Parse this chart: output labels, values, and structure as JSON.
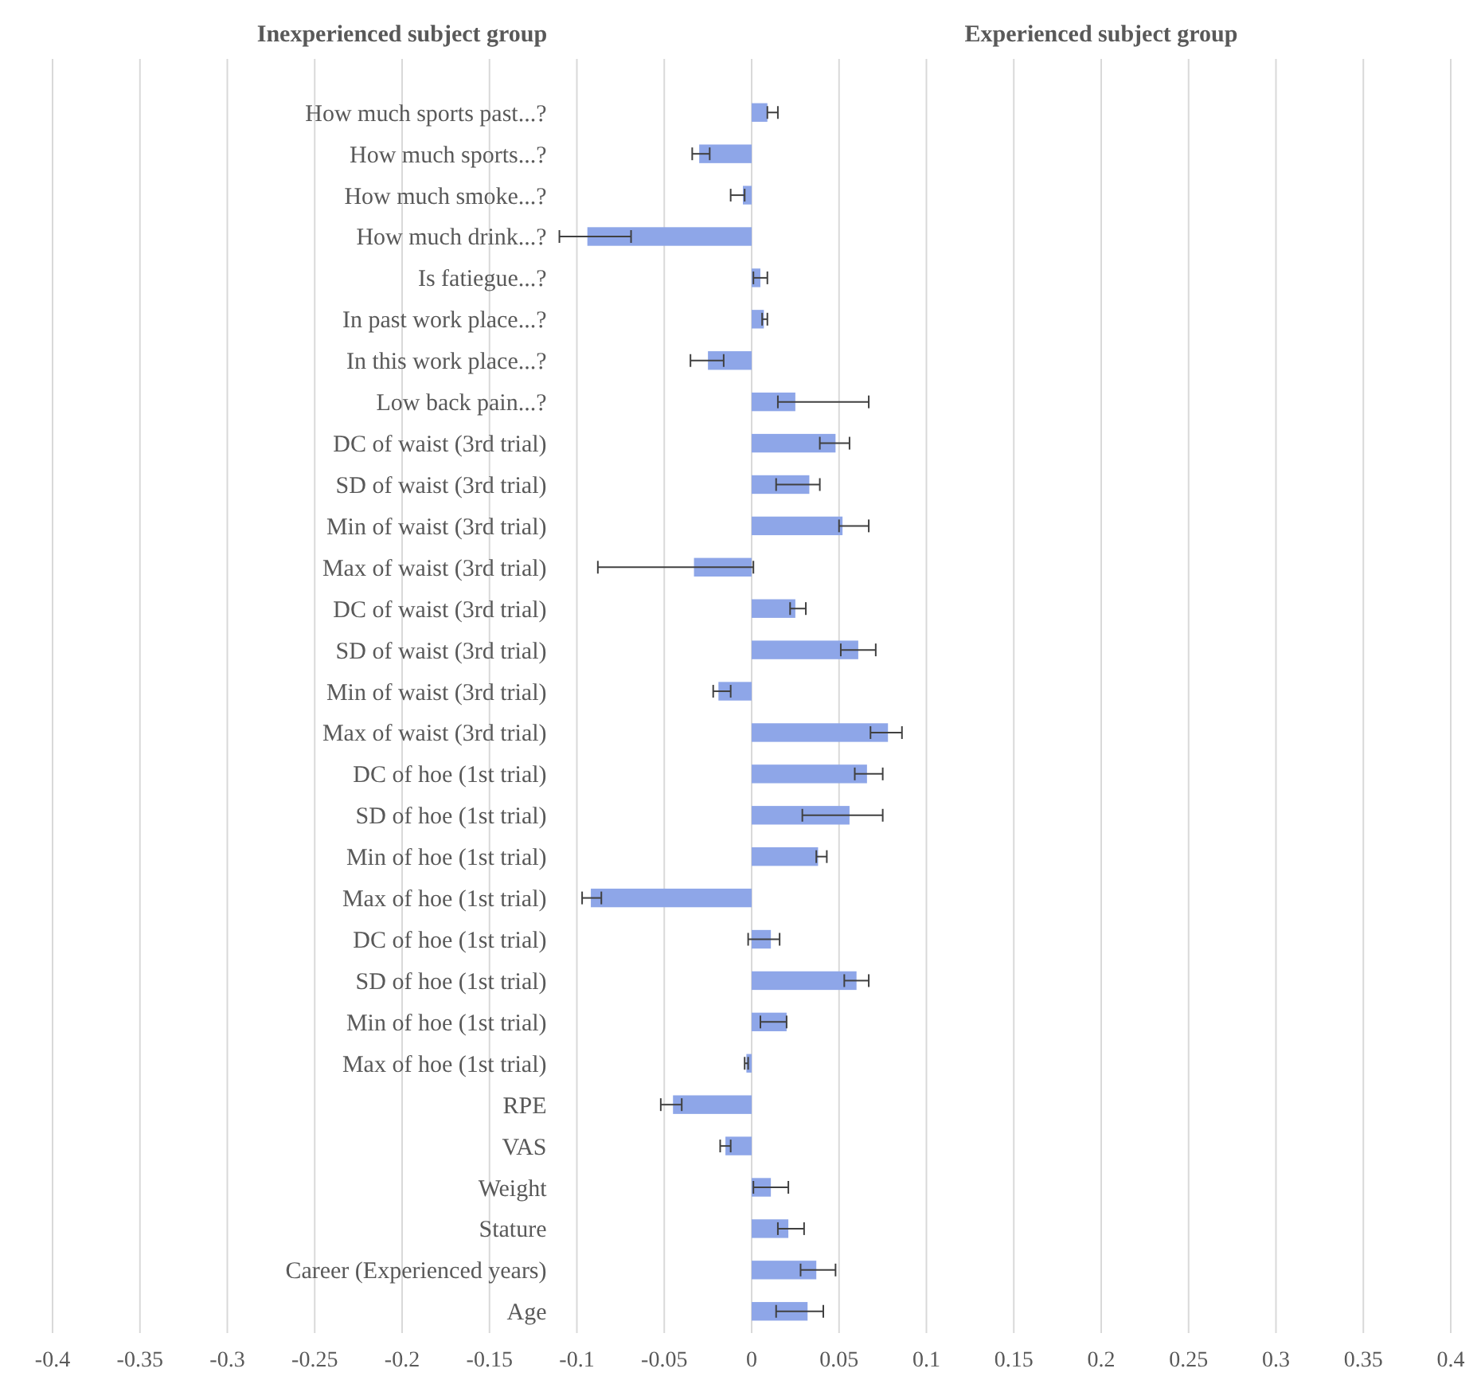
{
  "chart_data": {
    "type": "bar",
    "orientation": "horizontal",
    "annotations": [
      "Inexperienced subject group",
      "Experienced subject group"
    ],
    "categories": [
      "How much sports past...?",
      "How much sports...?",
      "How much smoke...?",
      "How much drink...?",
      "Is fatiegue...?",
      "In past work place...?",
      "In this work place...?",
      "Low back pain...?",
      "DC of waist (3rd trial)",
      "SD of waist (3rd trial)",
      "Min of waist (3rd trial)",
      "Max of waist (3rd trial)",
      "DC of waist (3rd trial)",
      "SD of waist (3rd trial)",
      "Min of waist (3rd trial)",
      "Max of waist (3rd trial)",
      "DC of hoe (1st trial)",
      "SD of hoe (1st trial)",
      "Min of hoe (1st trial)",
      "Max of hoe (1st trial)",
      "DC of hoe (1st trial)",
      "SD of hoe (1st trial)",
      "Min of hoe (1st trial)",
      "Max of hoe (1st trial)",
      "RPE",
      "VAS",
      "Weight",
      "Stature",
      "Career (Experienced years)",
      "Age"
    ],
    "values": [
      0.009,
      -0.03,
      -0.005,
      -0.094,
      0.005,
      0.007,
      -0.025,
      0.025,
      0.048,
      0.033,
      0.052,
      -0.033,
      0.025,
      0.061,
      -0.019,
      0.078,
      0.066,
      0.056,
      0.038,
      -0.092,
      0.011,
      0.06,
      0.02,
      -0.003,
      -0.045,
      -0.015,
      0.011,
      0.021,
      0.037,
      0.032
    ],
    "errors": [
      [
        0.009,
        0.015
      ],
      [
        -0.034,
        -0.024
      ],
      [
        -0.012,
        -0.004
      ],
      [
        -0.11,
        -0.069
      ],
      [
        0.001,
        0.009
      ],
      [
        0.006,
        0.009
      ],
      [
        -0.035,
        -0.016
      ],
      [
        0.015,
        0.067
      ],
      [
        0.039,
        0.056
      ],
      [
        0.014,
        0.039
      ],
      [
        0.05,
        0.067
      ],
      [
        -0.088,
        0.001
      ],
      [
        0.022,
        0.031
      ],
      [
        0.051,
        0.071
      ],
      [
        -0.022,
        -0.012
      ],
      [
        0.068,
        0.086
      ],
      [
        0.059,
        0.075
      ],
      [
        0.029,
        0.075
      ],
      [
        0.037,
        0.043
      ],
      [
        -0.097,
        -0.086
      ],
      [
        -0.002,
        0.016
      ],
      [
        0.053,
        0.067
      ],
      [
        0.005,
        0.02
      ],
      [
        -0.004,
        -0.002
      ],
      [
        -0.052,
        -0.04
      ],
      [
        -0.018,
        -0.012
      ],
      [
        0.001,
        0.021
      ],
      [
        0.015,
        0.03
      ],
      [
        0.028,
        0.048
      ],
      [
        0.014,
        0.041
      ]
    ],
    "color": "#8ea6e8",
    "xlim": [
      -0.4,
      0.4
    ],
    "xticks": [
      -0.4,
      -0.35,
      -0.3,
      -0.25,
      -0.2,
      -0.15,
      -0.1,
      -0.05,
      0,
      0.05,
      0.1,
      0.15,
      0.2,
      0.25,
      0.3,
      0.35,
      0.4
    ],
    "grid": "x"
  }
}
